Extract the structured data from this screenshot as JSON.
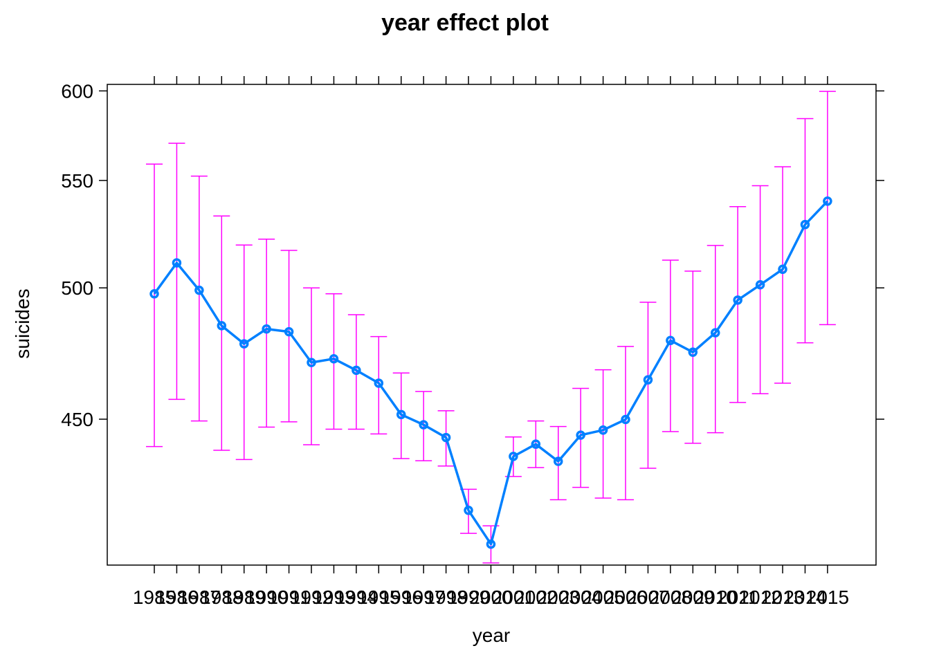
{
  "chart_data": {
    "type": "line",
    "title": "year effect plot",
    "xlabel": "year",
    "ylabel": "suicides",
    "x": [
      1985,
      1986,
      1987,
      1988,
      1989,
      1990,
      1991,
      1992,
      1993,
      1994,
      1995,
      1996,
      1997,
      1998,
      1999,
      2000,
      2001,
      2002,
      2003,
      2004,
      2005,
      2006,
      2007,
      2008,
      2009,
      2010,
      2011,
      2012,
      2013,
      2014,
      2015
    ],
    "x_tick_labels": [
      "1985",
      "1986",
      "1987",
      "1988",
      "1989",
      "1990",
      "1991",
      "1992",
      "1993",
      "1994",
      "1995",
      "1996",
      "1997",
      "1998",
      "1999",
      "2000",
      "2001",
      "2002",
      "2003",
      "2004",
      "2005",
      "2006",
      "2007",
      "2008",
      "2009",
      "2010",
      "2011",
      "2012",
      "2013",
      "2014",
      "2015"
    ],
    "series": [
      {
        "values": [
          497.5,
          510.8,
          499.0,
          484.5,
          477.4,
          483.2,
          482.1,
          470.3,
          471.7,
          467.4,
          462.7,
          451.6,
          448.1,
          443.8,
          420.8,
          410.9,
          437.6,
          441.6,
          436.0,
          444.6,
          446.3,
          449.9,
          463.9,
          478.7,
          474.2,
          481.7,
          494.9,
          501.3,
          508.0,
          528.3,
          539.6
        ],
        "lower": [
          440.8,
          456.9,
          449.4,
          439.6,
          436.6,
          447.3,
          449.1,
          441.4,
          446.6,
          446.6,
          445.0,
          436.9,
          436.2,
          434.5,
          414.0,
          405.6,
          431.2,
          434.0,
          424.0,
          427.8,
          424.5,
          424.0,
          433.8,
          445.8,
          441.9,
          445.4,
          455.8,
          458.9,
          462.7,
          477.8,
          484.9
        ],
        "upper": [
          558.5,
          569.7,
          552.2,
          532.4,
          518.8,
          521.5,
          516.4,
          500.0,
          497.5,
          488.9,
          480.2,
          466.4,
          459.7,
          452.9,
          427.2,
          416.2,
          444.0,
          449.4,
          447.5,
          460.8,
          467.6,
          476.4,
          494.0,
          512.0,
          507.2,
          518.6,
          536.9,
          547.3,
          557.1,
          583.6,
          599.7
        ]
      }
    ],
    "y_ticks": [
      450,
      500,
      550,
      600
    ],
    "y_tick_labels": [
      "450",
      "500",
      "550",
      "600"
    ],
    "ylim": [
      405,
      604
    ],
    "y_scale": "reciprocal",
    "grid": false,
    "colors": {
      "line": "#0080ff",
      "ci": "#ff00ff",
      "axis": "#000000"
    }
  }
}
